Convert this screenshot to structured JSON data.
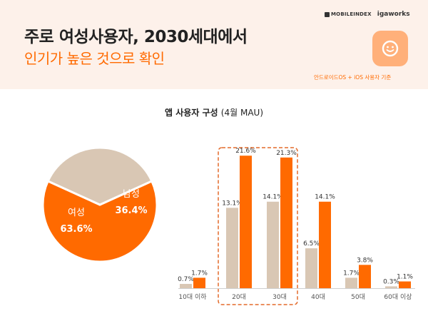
{
  "header": {
    "title_line1": "주로 여성사용자, 2030세대에서",
    "title_line2": "인기가 높은 것으로 확인",
    "logo_mobileindex": "MOBILEINDEX",
    "logo_igaworks": "igaworks",
    "basis": "안드로이드OS + iOS 사용자 기준"
  },
  "chart_data": [
    {
      "type": "pie",
      "title": "앱 사용자 구성",
      "subtitle": "(4월 MAU)",
      "slices": [
        {
          "label": "여성",
          "value": 63.6,
          "display": "63.6%",
          "color": "#ff6a00"
        },
        {
          "label": "남성",
          "value": 36.4,
          "display": "36.4%",
          "color": "#d9c7b4"
        }
      ]
    },
    {
      "type": "bar",
      "categories": [
        "10대 이하",
        "20대",
        "30대",
        "40대",
        "50대",
        "60대 이상"
      ],
      "series": [
        {
          "values": [
            0.7,
            13.1,
            14.1,
            6.5,
            1.7,
            0.3
          ],
          "labels": [
            "0.7%",
            "13.1%",
            "14.1%",
            "6.5%",
            "1.7%",
            "0.3%"
          ],
          "color": "#d9c7b4"
        },
        {
          "values": [
            1.7,
            21.6,
            21.3,
            14.1,
            3.8,
            1.1
          ],
          "labels": [
            "1.7%",
            "21.6%",
            "21.3%",
            "14.1%",
            "3.8%",
            "1.1%"
          ],
          "color": "#ff6a00"
        }
      ],
      "highlight": [
        "20대",
        "30대"
      ],
      "ylim": [
        0,
        24
      ]
    }
  ],
  "colors": {
    "accent": "#ff6a00",
    "neutral": "#d9c7b4",
    "header_bg": "#fdf1ea",
    "highlight_border": "#e36a2a"
  }
}
